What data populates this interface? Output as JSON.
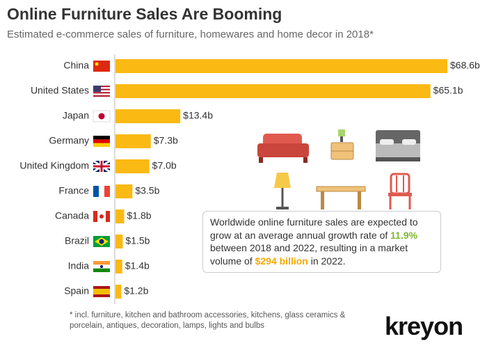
{
  "chart_data": {
    "type": "bar",
    "title": "Online Furniture Sales Are Booming",
    "subtitle": "Estimated e-commerce sales of furniture, homewares and home decor in 2018*",
    "categories": [
      "China",
      "United States",
      "Japan",
      "Germany",
      "United Kingdom",
      "France",
      "Canada",
      "Brazil",
      "India",
      "Spain"
    ],
    "values": [
      68.6,
      65.1,
      13.4,
      7.3,
      7.0,
      3.5,
      1.8,
      1.5,
      1.4,
      1.2
    ],
    "value_labels": [
      "$68.6b",
      "$65.1b",
      "$13.4b",
      "$7.3b",
      "$7.0b",
      "$3.5b",
      "$1.8b",
      "$1.5b",
      "$1.4b",
      "$1.2b"
    ],
    "color": "#fbb914",
    "annotation": [
      "Worldwide online furniture sales are expected to grow at an average annual growth rate of ",
      "11.9%",
      " between 2018 and 2022, resulting in a market volume of ",
      "$294 billion",
      " in 2022."
    ],
    "footnote": "* incl. furniture, kitchen and bathroom accessories, kitchens, glass ceramics & porcelain, antiques, decoration, lamps, lights and bulbs",
    "logo": "kreyon"
  }
}
